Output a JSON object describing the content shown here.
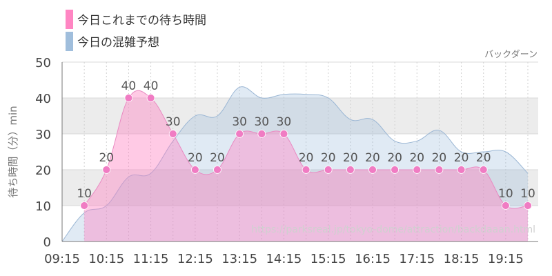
{
  "chart_data": {
    "type": "area",
    "ylabel": "待ち時間（分）min",
    "ylim": [
      0,
      50
    ],
    "yticks": [
      0,
      10,
      20,
      30,
      40,
      50
    ],
    "xticks": [
      "09:15",
      "10:15",
      "11:15",
      "12:15",
      "13:15",
      "14:15",
      "15:15",
      "16:15",
      "17:15",
      "18:15",
      "19:15"
    ],
    "annotation": "バックダーン",
    "watermark": "https://parksreal.jp/tokyo-dome/attraction/backdaaan.html",
    "legend_position": "top-left",
    "colors": {
      "actual": "#ff80c0",
      "forecast": "#8fb3d6"
    },
    "series": [
      {
        "name": "今日これまでの待ち時間",
        "style": "area-markers-labels",
        "points": [
          {
            "x": "09:45",
            "y": 10
          },
          {
            "x": "10:15",
            "y": 20
          },
          {
            "x": "10:45",
            "y": 40
          },
          {
            "x": "11:15",
            "y": 40
          },
          {
            "x": "11:45",
            "y": 30
          },
          {
            "x": "12:15",
            "y": 20
          },
          {
            "x": "12:45",
            "y": 20
          },
          {
            "x": "13:15",
            "y": 30
          },
          {
            "x": "13:45",
            "y": 30
          },
          {
            "x": "14:15",
            "y": 30
          },
          {
            "x": "14:45",
            "y": 20
          },
          {
            "x": "15:15",
            "y": 20
          },
          {
            "x": "15:45",
            "y": 20
          },
          {
            "x": "16:15",
            "y": 20
          },
          {
            "x": "16:45",
            "y": 20
          },
          {
            "x": "17:15",
            "y": 20
          },
          {
            "x": "17:45",
            "y": 20
          },
          {
            "x": "18:15",
            "y": 20
          },
          {
            "x": "18:45",
            "y": 20
          },
          {
            "x": "19:15",
            "y": 10
          },
          {
            "x": "19:45",
            "y": 10
          }
        ]
      },
      {
        "name": "今日の混雑予想",
        "style": "area",
        "points": [
          {
            "x": "09:15",
            "y": 0
          },
          {
            "x": "09:45",
            "y": 8
          },
          {
            "x": "10:15",
            "y": 10
          },
          {
            "x": "10:45",
            "y": 18
          },
          {
            "x": "11:15",
            "y": 19
          },
          {
            "x": "11:45",
            "y": 28
          },
          {
            "x": "12:15",
            "y": 35
          },
          {
            "x": "12:45",
            "y": 35
          },
          {
            "x": "13:15",
            "y": 43
          },
          {
            "x": "13:45",
            "y": 40
          },
          {
            "x": "14:15",
            "y": 41
          },
          {
            "x": "14:45",
            "y": 41
          },
          {
            "x": "15:15",
            "y": 40
          },
          {
            "x": "15:45",
            "y": 34
          },
          {
            "x": "16:15",
            "y": 34
          },
          {
            "x": "16:45",
            "y": 28
          },
          {
            "x": "17:15",
            "y": 28
          },
          {
            "x": "17:45",
            "y": 31
          },
          {
            "x": "18:15",
            "y": 25
          },
          {
            "x": "18:45",
            "y": 25
          },
          {
            "x": "19:15",
            "y": 25
          },
          {
            "x": "19:45",
            "y": 19
          }
        ]
      }
    ]
  }
}
